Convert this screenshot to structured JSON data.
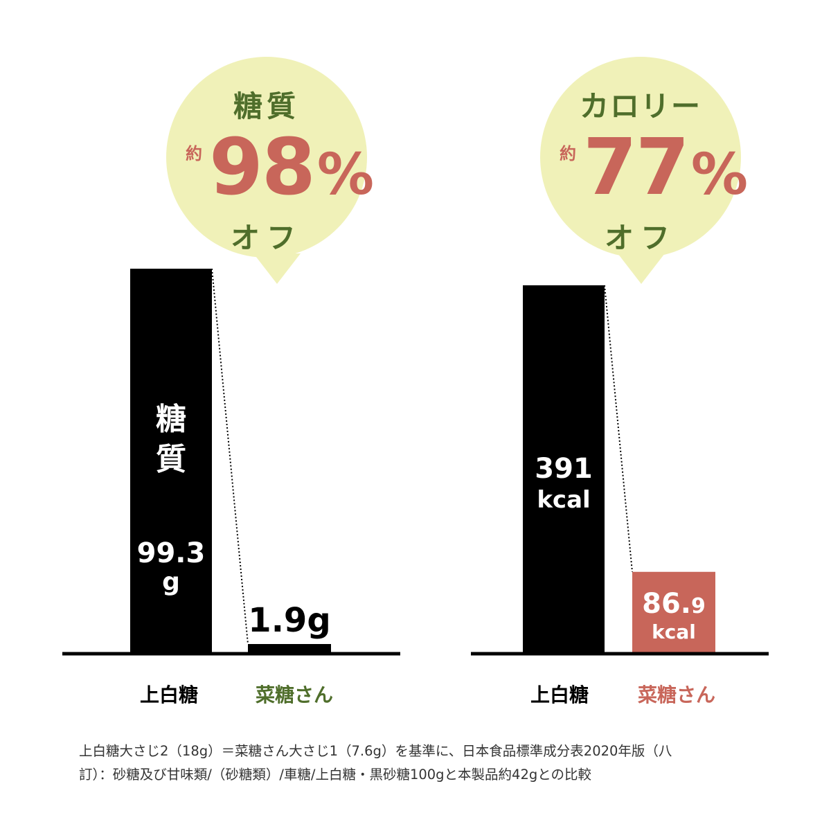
{
  "colors": {
    "bar_primary": "#000000",
    "bar_highlight": "#c8665a",
    "bubble_bg": "#f0f1b8",
    "text_green": "#4f6e2b",
    "text_red": "#c8665a"
  },
  "bubbles": [
    {
      "title": "糖質",
      "approx": "約",
      "value": "98",
      "unit": "%",
      "suffix": "オフ"
    },
    {
      "title": "カロリー",
      "approx": "約",
      "value": "77",
      "unit": "%",
      "suffix": "オフ"
    }
  ],
  "chart_data": [
    {
      "type": "bar",
      "categories": [
        "上白糖",
        "菜糖さん"
      ],
      "values": [
        99.3,
        1.9
      ],
      "unit": "g",
      "ylim": [
        0,
        100
      ],
      "bar_labels": [
        {
          "name": "糖質",
          "value": "99.3",
          "unit": "g"
        },
        {
          "value": "1.9g"
        }
      ],
      "category_colors": [
        "#000000",
        "#4f6e2b"
      ]
    },
    {
      "type": "bar",
      "categories": [
        "上白糖",
        "菜糖さん"
      ],
      "values": [
        391,
        86.9
      ],
      "unit": "kcal",
      "ylim": [
        0,
        440
      ],
      "bar_labels": [
        {
          "value": "391",
          "unit": "kcal"
        },
        {
          "value_int": "86.",
          "value_dec": "9",
          "unit": "kcal"
        }
      ],
      "category_colors": [
        "#000000",
        "#c8665a"
      ]
    }
  ],
  "footnote": {
    "line1": "上白糖大さじ2（18g）＝菜糖さん大さじ1（7.6g）を基準に、日本食品標準成分表2020年版（八",
    "line2": "訂）：砂糖及び甘味類/（砂糖類）/車糖/上白糖・黒砂糖100gと本製品約42gとの比較"
  }
}
